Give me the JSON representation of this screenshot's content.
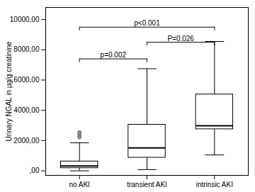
{
  "chart_data": {
    "type": "box",
    "categories": [
      "no AKI",
      "transient AKI",
      "intrinsic AKI"
    ],
    "boxes": [
      {
        "whislo": 0,
        "q1": 180,
        "med": 320,
        "q3": 620,
        "whishi": 1850,
        "fliers": [
          2200,
          2300,
          2380,
          2450,
          2500,
          2560
        ]
      },
      {
        "whislo": 80,
        "q1": 870,
        "med": 1520,
        "q3": 3050,
        "whishi": 6750,
        "fliers": []
      },
      {
        "whislo": 1050,
        "q1": 2750,
        "med": 2980,
        "q3": 5050,
        "whishi": 8550,
        "fliers": []
      }
    ],
    "ylabel": "Urinary NGAL in µg/g creatinine",
    "ylim": [
      -300,
      10800
    ],
    "yticks": [
      {
        "value": 0,
        "label": ",00"
      },
      {
        "value": 2000,
        "label": "2000,00"
      },
      {
        "value": 4000,
        "label": "4000,00"
      },
      {
        "value": 6000,
        "label": "6000,00"
      },
      {
        "value": 8000,
        "label": "8000,00"
      },
      {
        "value": 10000,
        "label": "10000,00"
      }
    ],
    "annotations": [
      {
        "from": "no AKI",
        "to": "transient AKI",
        "y": 7400,
        "label": "p=0.002"
      },
      {
        "from": "no AKI",
        "to": "intrinsic AKI",
        "y": 9500,
        "label": "p<0.001"
      },
      {
        "from": "transient AKI",
        "to": "intrinsic AKI",
        "y": 8500,
        "label": "P=0.026"
      }
    ]
  }
}
